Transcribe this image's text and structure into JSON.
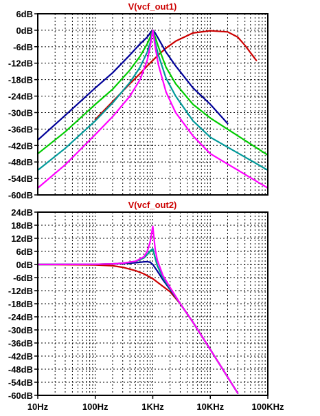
{
  "chart_data": [
    {
      "type": "line",
      "title": "V(vcf_out1)",
      "x_scale": "log",
      "xlim": [
        10,
        100000
      ],
      "ylim": [
        -60,
        6
      ],
      "yticks": [
        6,
        0,
        -6,
        -12,
        -18,
        -24,
        -30,
        -36,
        -42,
        -48,
        -54,
        -60
      ],
      "ytick_labels": [
        "6dB",
        "0dB",
        "-6dB",
        "-12dB",
        "-18dB",
        "-24dB",
        "-30dB",
        "-36dB",
        "-42dB",
        "-48dB",
        "-54dB",
        "-60dB"
      ],
      "grid": true,
      "series": [
        {
          "color": "#cc0000",
          "x": [
            100,
            200,
            400,
            600,
            800,
            1000,
            1250,
            1700,
            2500,
            5000,
            10000,
            20000,
            30000,
            40000,
            63000
          ],
          "y": [
            -32.5,
            -26,
            -19.5,
            -15.8,
            -13,
            -11,
            -9,
            -6.5,
            -4,
            -1,
            -0.2,
            -0.6,
            -2.5,
            -5.5,
            -11
          ]
        },
        {
          "color": "#000099",
          "x": [
            10,
            30,
            100,
            200,
            400,
            600,
            800,
            900,
            1000,
            1100,
            1250,
            1700,
            2500,
            5000,
            10000,
            20000
          ],
          "y": [
            -40,
            -31,
            -21,
            -15.5,
            -9,
            -5,
            -2.5,
            -1,
            0,
            -1,
            -3,
            -8,
            -13,
            -21,
            -27,
            -34
          ]
        },
        {
          "color": "#00cc00",
          "x": [
            10,
            30,
            100,
            200,
            400,
            600,
            800,
            900,
            1000,
            1100,
            1250,
            1700,
            2500,
            5000,
            10000,
            100000
          ],
          "y": [
            -45,
            -37,
            -27,
            -21.5,
            -14.5,
            -9.5,
            -5,
            -2.5,
            0,
            -2.5,
            -6,
            -13.5,
            -19.5,
            -27,
            -32,
            -45.5
          ]
        },
        {
          "color": "#009999",
          "x": [
            10,
            30,
            100,
            200,
            400,
            600,
            800,
            900,
            1000,
            1100,
            1250,
            1700,
            2500,
            5000,
            10000,
            100000
          ],
          "y": [
            -51,
            -43,
            -33,
            -26.5,
            -19,
            -13.5,
            -8,
            -4.5,
            0,
            -4.5,
            -9,
            -17.5,
            -24,
            -33,
            -39,
            -51
          ]
        },
        {
          "color": "#ff00ff",
          "x": [
            10,
            30,
            100,
            200,
            400,
            600,
            800,
            900,
            1000,
            1100,
            1250,
            1700,
            2500,
            5000,
            10000,
            100000
          ],
          "y": [
            -57.5,
            -49,
            -38,
            -31.5,
            -24,
            -18,
            -11,
            -6,
            0,
            -6,
            -12.5,
            -22.5,
            -30,
            -38.5,
            -45,
            -57.5
          ]
        }
      ]
    },
    {
      "type": "line",
      "title": "V(vcf_out2)",
      "x_scale": "log",
      "xlim": [
        10,
        100000
      ],
      "ylim": [
        -60,
        24
      ],
      "xticks": [
        10,
        100,
        1000,
        10000,
        100000
      ],
      "xtick_labels": [
        "10Hz",
        "100Hz",
        "1KHz",
        "10KHz",
        "100KHz"
      ],
      "yticks": [
        24,
        18,
        12,
        6,
        0,
        -6,
        -12,
        -18,
        -24,
        -30,
        -36,
        -42,
        -48,
        -54,
        -60
      ],
      "ytick_labels": [
        "24dB",
        "18dB",
        "12dB",
        "6dB",
        "0dB",
        "-6dB",
        "-12dB",
        "-18dB",
        "-24dB",
        "-30dB",
        "-36dB",
        "-42dB",
        "-48dB",
        "-54dB",
        "-60dB"
      ],
      "grid": true,
      "series": [
        {
          "color": "#cc0000",
          "x": [
            10,
            100,
            200,
            300,
            500,
            700,
            1000,
            1500,
            2000,
            3000,
            5000,
            10000,
            30000
          ],
          "y": [
            0,
            -0.2,
            -0.6,
            -1.3,
            -2.8,
            -4.3,
            -6.5,
            -10,
            -12.5,
            -18,
            -26.5,
            -39,
            -59
          ]
        },
        {
          "color": "#000099",
          "x": [
            10,
            100,
            200,
            300,
            500,
            700,
            800,
            900,
            1000,
            1200,
            1500,
            2000,
            3000,
            5000,
            10000,
            30000
          ],
          "y": [
            0,
            0.1,
            0.2,
            0.4,
            0.8,
            1.2,
            1.3,
            1,
            0,
            -3,
            -7,
            -11.5,
            -18,
            -26.5,
            -39,
            -59
          ]
        },
        {
          "color": "#00cc00",
          "x": [
            10,
            100,
            200,
            300,
            500,
            700,
            800,
            900,
            1000,
            1100,
            1200,
            1500,
            2000,
            3000,
            5000,
            10000,
            30000
          ],
          "y": [
            0,
            0.1,
            0.3,
            0.6,
            1.4,
            3,
            4.5,
            6,
            7,
            3,
            -0.5,
            -6,
            -11,
            -18,
            -26.5,
            -39,
            -59
          ]
        },
        {
          "color": "#009999",
          "x": [
            10,
            100,
            200,
            300,
            500,
            700,
            800,
            900,
            1000,
            1100,
            1200,
            1500,
            2000,
            3000,
            5000,
            10000,
            30000
          ],
          "y": [
            0,
            0.1,
            0.3,
            0.6,
            1.4,
            3,
            4.6,
            6.2,
            7.2,
            3,
            -0.5,
            -6,
            -11,
            -18,
            -26.5,
            -39,
            -59
          ]
        },
        {
          "color": "#ff00ff",
          "x": [
            10,
            100,
            200,
            300,
            500,
            700,
            800,
            900,
            950,
            1000,
            1050,
            1100,
            1200,
            1500,
            2000,
            3000,
            5000,
            10000,
            30000
          ],
          "y": [
            0,
            0.1,
            0.3,
            0.6,
            1.5,
            3.5,
            6,
            10.5,
            14,
            17.5,
            12,
            7,
            2,
            -5,
            -10.5,
            -18,
            -26.5,
            -39,
            -59
          ]
        }
      ]
    }
  ]
}
